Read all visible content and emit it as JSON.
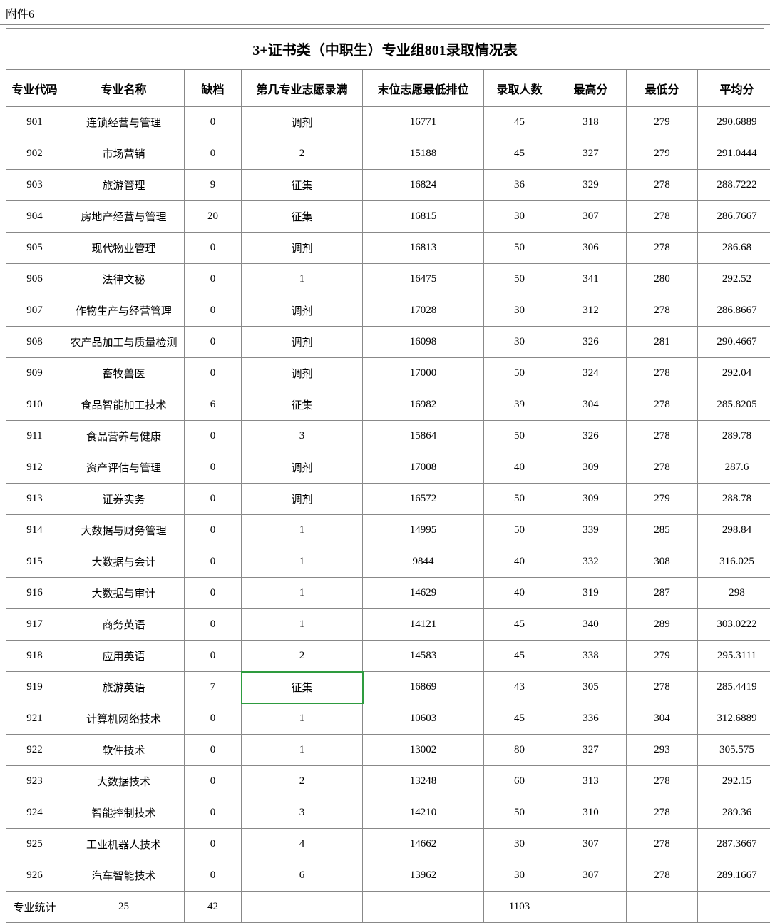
{
  "attachment_label": "附件6",
  "title": "3+证书类（中职生）专业组801录取情况表",
  "columns": [
    "专业代码",
    "专业名称",
    "缺档",
    "第几专业志愿录满",
    "末位志愿最低排位",
    "录取人数",
    "最高分",
    "最低分",
    "平均分"
  ],
  "col_classes": [
    "col-code",
    "col-name",
    "col-gap",
    "col-fill",
    "col-rank",
    "col-count",
    "col-max",
    "col-min",
    "col-avg"
  ],
  "rows": [
    [
      "901",
      "连锁经营与管理",
      "0",
      "调剂",
      "16771",
      "45",
      "318",
      "279",
      "290.6889"
    ],
    [
      "902",
      "市场营销",
      "0",
      "2",
      "15188",
      "45",
      "327",
      "279",
      "291.0444"
    ],
    [
      "903",
      "旅游管理",
      "9",
      "征集",
      "16824",
      "36",
      "329",
      "278",
      "288.7222"
    ],
    [
      "904",
      "房地产经营与管理",
      "20",
      "征集",
      "16815",
      "30",
      "307",
      "278",
      "286.7667"
    ],
    [
      "905",
      "现代物业管理",
      "0",
      "调剂",
      "16813",
      "50",
      "306",
      "278",
      "286.68"
    ],
    [
      "906",
      "法律文秘",
      "0",
      "1",
      "16475",
      "50",
      "341",
      "280",
      "292.52"
    ],
    [
      "907",
      "作物生产与经营管理",
      "0",
      "调剂",
      "17028",
      "30",
      "312",
      "278",
      "286.8667"
    ],
    [
      "908",
      "农产品加工与质量检测",
      "0",
      "调剂",
      "16098",
      "30",
      "326",
      "281",
      "290.4667"
    ],
    [
      "909",
      "畜牧兽医",
      "0",
      "调剂",
      "17000",
      "50",
      "324",
      "278",
      "292.04"
    ],
    [
      "910",
      "食品智能加工技术",
      "6",
      "征集",
      "16982",
      "39",
      "304",
      "278",
      "285.8205"
    ],
    [
      "911",
      "食品营养与健康",
      "0",
      "3",
      "15864",
      "50",
      "326",
      "278",
      "289.78"
    ],
    [
      "912",
      "资产评估与管理",
      "0",
      "调剂",
      "17008",
      "40",
      "309",
      "278",
      "287.6"
    ],
    [
      "913",
      "证券实务",
      "0",
      "调剂",
      "16572",
      "50",
      "309",
      "279",
      "288.78"
    ],
    [
      "914",
      "大数据与财务管理",
      "0",
      "1",
      "14995",
      "50",
      "339",
      "285",
      "298.84"
    ],
    [
      "915",
      "大数据与会计",
      "0",
      "1",
      "9844",
      "40",
      "332",
      "308",
      "316.025"
    ],
    [
      "916",
      "大数据与审计",
      "0",
      "1",
      "14629",
      "40",
      "319",
      "287",
      "298"
    ],
    [
      "917",
      "商务英语",
      "0",
      "1",
      "14121",
      "45",
      "340",
      "289",
      "303.0222"
    ],
    [
      "918",
      "应用英语",
      "0",
      "2",
      "14583",
      "45",
      "338",
      "279",
      "295.3111"
    ],
    [
      "919",
      "旅游英语",
      "7",
      "征集",
      "16869",
      "43",
      "305",
      "278",
      "285.4419"
    ],
    [
      "921",
      "计算机网络技术",
      "0",
      "1",
      "10603",
      "45",
      "336",
      "304",
      "312.6889"
    ],
    [
      "922",
      "软件技术",
      "0",
      "1",
      "13002",
      "80",
      "327",
      "293",
      "305.575"
    ],
    [
      "923",
      "大数据技术",
      "0",
      "2",
      "13248",
      "60",
      "313",
      "278",
      "292.15"
    ],
    [
      "924",
      "智能控制技术",
      "0",
      "3",
      "14210",
      "50",
      "310",
      "278",
      "289.36"
    ],
    [
      "925",
      "工业机器人技术",
      "0",
      "4",
      "14662",
      "30",
      "307",
      "278",
      "287.3667"
    ],
    [
      "926",
      "汽车智能技术",
      "0",
      "6",
      "13962",
      "30",
      "307",
      "278",
      "289.1667"
    ]
  ],
  "summary": [
    "专业统计",
    "25",
    "42",
    "",
    "",
    "1103",
    "",
    "",
    ""
  ],
  "selected_cell": {
    "row": 18,
    "col": 3
  }
}
